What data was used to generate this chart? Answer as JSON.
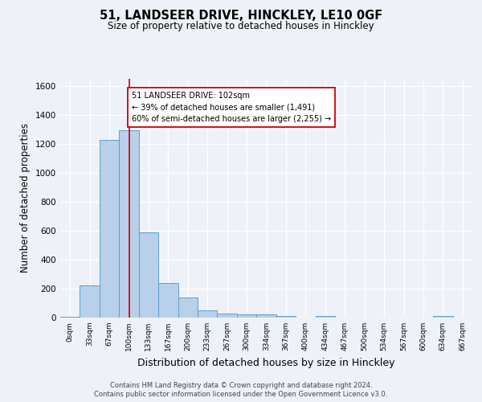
{
  "title1": "51, LANDSEER DRIVE, HINCKLEY, LE10 0GF",
  "title2": "Size of property relative to detached houses in Hinckley",
  "xlabel": "Distribution of detached houses by size in Hinckley",
  "ylabel": "Number of detached properties",
  "footer1": "Contains HM Land Registry data © Crown copyright and database right 2024.",
  "footer2": "Contains public sector information licensed under the Open Government Licence v3.0.",
  "bin_labels": [
    "0sqm",
    "33sqm",
    "67sqm",
    "100sqm",
    "133sqm",
    "167sqm",
    "200sqm",
    "233sqm",
    "267sqm",
    "300sqm",
    "334sqm",
    "367sqm",
    "400sqm",
    "434sqm",
    "467sqm",
    "500sqm",
    "534sqm",
    "567sqm",
    "600sqm",
    "634sqm",
    "667sqm"
  ],
  "bar_values": [
    5,
    220,
    1225,
    1295,
    590,
    240,
    140,
    52,
    30,
    22,
    22,
    12,
    0,
    12,
    0,
    0,
    0,
    0,
    0,
    12,
    0
  ],
  "bar_color": "#b8d0ea",
  "bar_edge_color": "#5a9fd4",
  "property_line_x": 3.0,
  "property_line_color": "#cc0000",
  "annotation_text": "51 LANDSEER DRIVE: 102sqm\n← 39% of detached houses are smaller (1,491)\n60% of semi-detached houses are larger (2,255) →",
  "annotation_box_color": "#ffffff",
  "annotation_box_edge": "#cc0000",
  "ylim": [
    0,
    1650
  ],
  "yticks": [
    0,
    200,
    400,
    600,
    800,
    1000,
    1200,
    1400,
    1600
  ],
  "bg_color": "#eef2f8",
  "plot_bg_color": "#eef2f8",
  "grid_color": "#ffffff"
}
